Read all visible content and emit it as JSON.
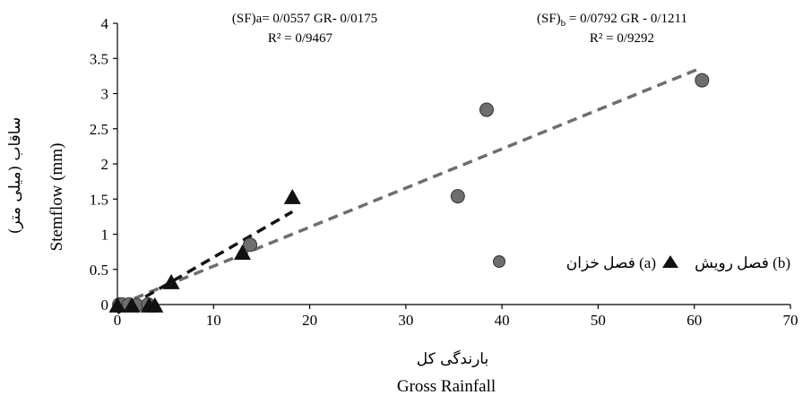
{
  "chart_data": {
    "type": "scatter",
    "xlabel": "Gross Rainfall",
    "xlabel_fa": "بارندگی کل",
    "ylabel": "Stemflow (mm)",
    "ylabel_fa": "ساقاب (میلی متر)",
    "xlim": [
      0,
      70
    ],
    "ylim": [
      0,
      4
    ],
    "x_ticks": [
      "0",
      "10",
      "20",
      "30",
      "40",
      "50",
      "60",
      "70"
    ],
    "y_ticks": [
      "0",
      "0.5",
      "1",
      "1.5",
      "2",
      "2.5",
      "3",
      "3.5",
      "4"
    ],
    "x_tick_values": [
      0,
      10,
      20,
      30,
      40,
      50,
      60,
      70
    ],
    "y_tick_values": [
      0,
      0.5,
      1,
      1.5,
      2,
      2.5,
      3,
      3.5,
      4
    ],
    "grid": false,
    "series": [
      {
        "name": "فصل خزان (a)",
        "marker": "circle",
        "color": "#6e6e6e",
        "points": [
          [
            0.2,
            0.0
          ],
          [
            0.5,
            0.0
          ],
          [
            1.2,
            0.0
          ],
          [
            2.0,
            -0.01
          ],
          [
            3.2,
            0.0
          ],
          [
            13.8,
            0.85
          ],
          [
            35.4,
            1.54
          ],
          [
            38.4,
            2.77
          ],
          [
            60.8,
            3.19
          ]
        ]
      },
      {
        "name": "فصل رویش (b)",
        "marker": "triangle",
        "color": "#111111",
        "points": [
          [
            0.0,
            -0.03
          ],
          [
            1.5,
            -0.03
          ],
          [
            3.3,
            -0.03
          ],
          [
            3.9,
            -0.03
          ],
          [
            5.6,
            0.3
          ],
          [
            13.0,
            0.72
          ],
          [
            18.2,
            1.51
          ]
        ]
      }
    ],
    "trendlines": [
      {
        "series": "a",
        "color": "#6e6e6e",
        "x_range": [
          0.2,
          60.8
        ],
        "y_range": [
          0.0,
          3.37
        ],
        "equation_prefix": "(SF)a= 0/0557  GR- 0/0175",
        "r2": "R² = 0/9467"
      },
      {
        "series": "b",
        "color": "#111111",
        "x_range": [
          0.0,
          18.2
        ],
        "y_range": [
          -0.12,
          1.32
        ],
        "equation_prefix": "(SF)",
        "equation_sub": "b",
        "equation_suffix": " = 0/0792 GR - 0/1211",
        "r2": "R² = 0/9292"
      }
    ],
    "legend": {
      "placement": "right",
      "item_a_text": "(a) فصل خزان",
      "item_b_text": "(b) فصل رویش"
    }
  }
}
